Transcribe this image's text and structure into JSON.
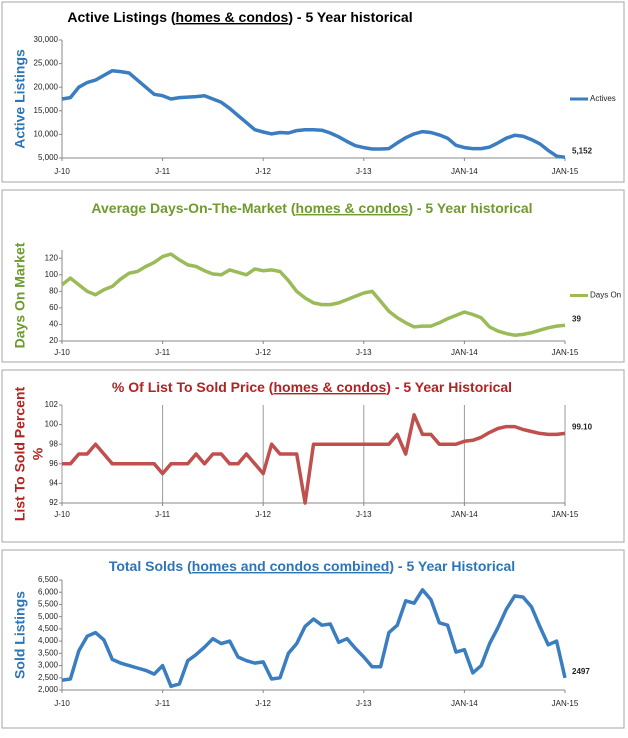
{
  "chart_data": [
    {
      "type": "line",
      "title": {
        "before": "Active Listings (",
        "underlined": "homes & condos",
        "after": ") - 5 Year historical"
      },
      "title_color": "#000000",
      "ylabel": "Active Listings",
      "ylabel_color": "#2e75b6",
      "categories": [
        "J-10",
        null,
        null,
        null,
        null,
        null,
        null,
        null,
        null,
        null,
        null,
        null,
        "J-11",
        null,
        null,
        null,
        null,
        null,
        null,
        null,
        null,
        null,
        null,
        null,
        "J-12",
        null,
        null,
        null,
        null,
        null,
        null,
        null,
        null,
        null,
        null,
        null,
        "J-13",
        null,
        null,
        null,
        null,
        null,
        null,
        null,
        null,
        null,
        null,
        null,
        "JAN-14",
        null,
        null,
        null,
        null,
        null,
        null,
        null,
        null,
        null,
        null,
        null,
        "JAN-15"
      ],
      "series": [
        {
          "name": "Actives",
          "color": "#3a7dc1",
          "values": [
            17500,
            17800,
            20000,
            21000,
            21500,
            22500,
            23500,
            23300,
            23000,
            21500,
            20000,
            18500,
            18200,
            17500,
            17800,
            17900,
            18000,
            18200,
            17500,
            16800,
            15500,
            14000,
            12500,
            11000,
            10500,
            10100,
            10400,
            10300,
            10800,
            11000,
            11000,
            10900,
            10300,
            9500,
            8500,
            7600,
            7200,
            6900,
            6900,
            7000,
            8200,
            9300,
            10100,
            10600,
            10400,
            9900,
            9200,
            7700,
            7200,
            7000,
            7000,
            7300,
            8200,
            9200,
            9800,
            9600,
            8900,
            8000,
            6600,
            5400,
            5152
          ],
          "value_labels": [
            null,
            null,
            null,
            null,
            null,
            null,
            null,
            null,
            null,
            null,
            null,
            null,
            null,
            null,
            null,
            null,
            null,
            null,
            null,
            null,
            null,
            null,
            null,
            null,
            null,
            null,
            null,
            null,
            null,
            null,
            null,
            null,
            null,
            null,
            null,
            null,
            null,
            null,
            null,
            null,
            null,
            null,
            null,
            null,
            null,
            null,
            null,
            null,
            null,
            null,
            null,
            null,
            null,
            null,
            null,
            null,
            null,
            null,
            null,
            null,
            "5,152"
          ]
        }
      ],
      "ylim": [
        5000,
        30000
      ],
      "yticks": [
        {
          "value": 5000,
          "label": "5,000"
        },
        {
          "value": 10000,
          "label": "10,000"
        },
        {
          "value": 15000,
          "label": "15,000"
        },
        {
          "value": 20000,
          "label": "20,000"
        },
        {
          "value": 25000,
          "label": "25,000"
        },
        {
          "value": 30000,
          "label": "30,000"
        }
      ],
      "legend": "right"
    },
    {
      "type": "line",
      "title": {
        "before": "Average Days-On-The-Market (",
        "underlined": "homes & condos",
        "after": ") - 5 Year historical"
      },
      "title_color": "#6f9a2e",
      "ylabel": "Days On Market",
      "ylabel_color": "#6f9a2e",
      "categories": [
        "J-10",
        null,
        null,
        null,
        null,
        null,
        null,
        null,
        null,
        null,
        null,
        null,
        "J-11",
        null,
        null,
        null,
        null,
        null,
        null,
        null,
        null,
        null,
        null,
        null,
        "J-12",
        null,
        null,
        null,
        null,
        null,
        null,
        null,
        null,
        null,
        null,
        null,
        "J-13",
        null,
        null,
        null,
        null,
        null,
        null,
        null,
        null,
        null,
        null,
        null,
        "JAN-14",
        null,
        null,
        null,
        null,
        null,
        null,
        null,
        null,
        null,
        null,
        null,
        "JAN-15"
      ],
      "series": [
        {
          "name": "Days On",
          "color": "#9bbb59",
          "values": [
            88,
            96,
            88,
            80,
            76,
            82,
            86,
            95,
            102,
            104,
            110,
            115,
            122,
            125,
            118,
            112,
            110,
            105,
            101,
            100,
            106,
            103,
            100,
            107,
            105,
            106,
            104,
            93,
            80,
            72,
            66,
            64,
            64,
            66,
            70,
            74,
            78,
            80,
            68,
            56,
            48,
            42,
            37,
            38,
            38,
            42,
            47,
            51,
            55,
            52,
            48,
            37,
            32,
            29,
            27,
            28,
            30,
            33,
            36,
            38,
            39
          ]
        }
      ],
      "ylim": [
        20,
        130
      ],
      "yticks": [
        20,
        40,
        60,
        80,
        100,
        120
      ],
      "legend": "right"
    },
    {
      "type": "line",
      "title": {
        "before": "% Of List To Sold Price (",
        "underlined": "homes & condos",
        "after": ") - 5 Year Historical"
      },
      "title_color": "#b22222",
      "ylabel": [
        "List To Sold Percent",
        "%"
      ],
      "ylabel_color": "#b22222",
      "categories": [
        "J-10",
        null,
        null,
        null,
        null,
        null,
        null,
        null,
        null,
        null,
        null,
        null,
        "J-11",
        null,
        null,
        null,
        null,
        null,
        null,
        null,
        null,
        null,
        null,
        null,
        "J-12",
        null,
        null,
        null,
        null,
        null,
        null,
        null,
        null,
        null,
        null,
        null,
        "J-13",
        null,
        null,
        null,
        null,
        null,
        null,
        null,
        null,
        null,
        null,
        null,
        "JAN-14",
        null,
        null,
        null,
        null,
        null,
        null,
        null,
        null,
        null,
        null,
        null,
        "JAN-15"
      ],
      "color": "#c0504d",
      "values": [
        96,
        96,
        97,
        97,
        98,
        97,
        96,
        96,
        96,
        96,
        96,
        96,
        95,
        96,
        96,
        96,
        97,
        96,
        97,
        97,
        96,
        96,
        97,
        96,
        95,
        98,
        97,
        97,
        97,
        92,
        98,
        98,
        98,
        98,
        98,
        98,
        98,
        98,
        98,
        98,
        99,
        97,
        101,
        99,
        99,
        98,
        98,
        98,
        98.3,
        98.4,
        98.7,
        99.2,
        99.6,
        99.8,
        99.8,
        99.5,
        99.3,
        99.1,
        99,
        99,
        99.1
      ],
      "value_labels": [
        null,
        null,
        null,
        null,
        null,
        null,
        null,
        null,
        null,
        null,
        null,
        null,
        null,
        null,
        null,
        null,
        null,
        null,
        null,
        null,
        null,
        null,
        null,
        null,
        null,
        null,
        null,
        null,
        null,
        null,
        null,
        null,
        null,
        null,
        null,
        null,
        null,
        null,
        null,
        null,
        null,
        null,
        null,
        null,
        null,
        null,
        null,
        null,
        null,
        null,
        null,
        null,
        null,
        null,
        null,
        null,
        null,
        null,
        null,
        null,
        "99.10"
      ],
      "ylim": [
        92,
        102
      ],
      "yticks": [
        92,
        94,
        96,
        98,
        100,
        102
      ],
      "xgrid": true
    },
    {
      "type": "line",
      "title": {
        "before": "Total Solds (",
        "underlined": "homes and condos combined",
        "after": ") - 5 Year Historical"
      },
      "title_color": "#2e75b6",
      "ylabel": "Sold Listings",
      "ylabel_color": "#2e75b6",
      "categories": [
        "J-10",
        null,
        null,
        null,
        null,
        null,
        null,
        null,
        null,
        null,
        null,
        null,
        "J-11",
        null,
        null,
        null,
        null,
        null,
        null,
        null,
        null,
        null,
        null,
        null,
        "J-12",
        null,
        null,
        null,
        null,
        null,
        null,
        null,
        null,
        null,
        null,
        null,
        "J-13",
        null,
        null,
        null,
        null,
        null,
        null,
        null,
        null,
        null,
        null,
        null,
        "JAN-14",
        null,
        null,
        null,
        null,
        null,
        null,
        null,
        null,
        null,
        null,
        null,
        "JAN-15"
      ],
      "color": "#3a7dc1",
      "values": [
        2400,
        2450,
        3600,
        4200,
        4350,
        4050,
        3250,
        3100,
        3000,
        2900,
        2800,
        2650,
        3000,
        2150,
        2250,
        3200,
        3450,
        3750,
        4100,
        3900,
        4000,
        3350,
        3200,
        3100,
        3150,
        2450,
        2500,
        3500,
        3900,
        4600,
        4900,
        4650,
        4700,
        3950,
        4100,
        3700,
        3350,
        2950,
        2950,
        4350,
        4650,
        5650,
        5550,
        6100,
        5700,
        4750,
        4650,
        3550,
        3650,
        2700,
        3000,
        3900,
        4550,
        5300,
        5850,
        5800,
        5400,
        4600,
        3850,
        4000,
        2497
      ],
      "ylim": [
        2000,
        6500
      ],
      "yticks": [
        {
          "value": 2000,
          "label": "2,000"
        },
        {
          "value": 2500,
          "label": "2,500"
        },
        {
          "value": 3000,
          "label": "3,000"
        },
        {
          "value": 3500,
          "label": "3,500"
        },
        {
          "value": 4000,
          "label": "4,000"
        },
        {
          "value": 4500,
          "label": "4,500"
        },
        {
          "value": 5000,
          "label": "5,000"
        },
        {
          "value": 5500,
          "label": "5,500"
        },
        {
          "value": 6000,
          "label": "6,000"
        },
        {
          "value": 6500,
          "label": "6,500"
        }
      ]
    }
  ]
}
